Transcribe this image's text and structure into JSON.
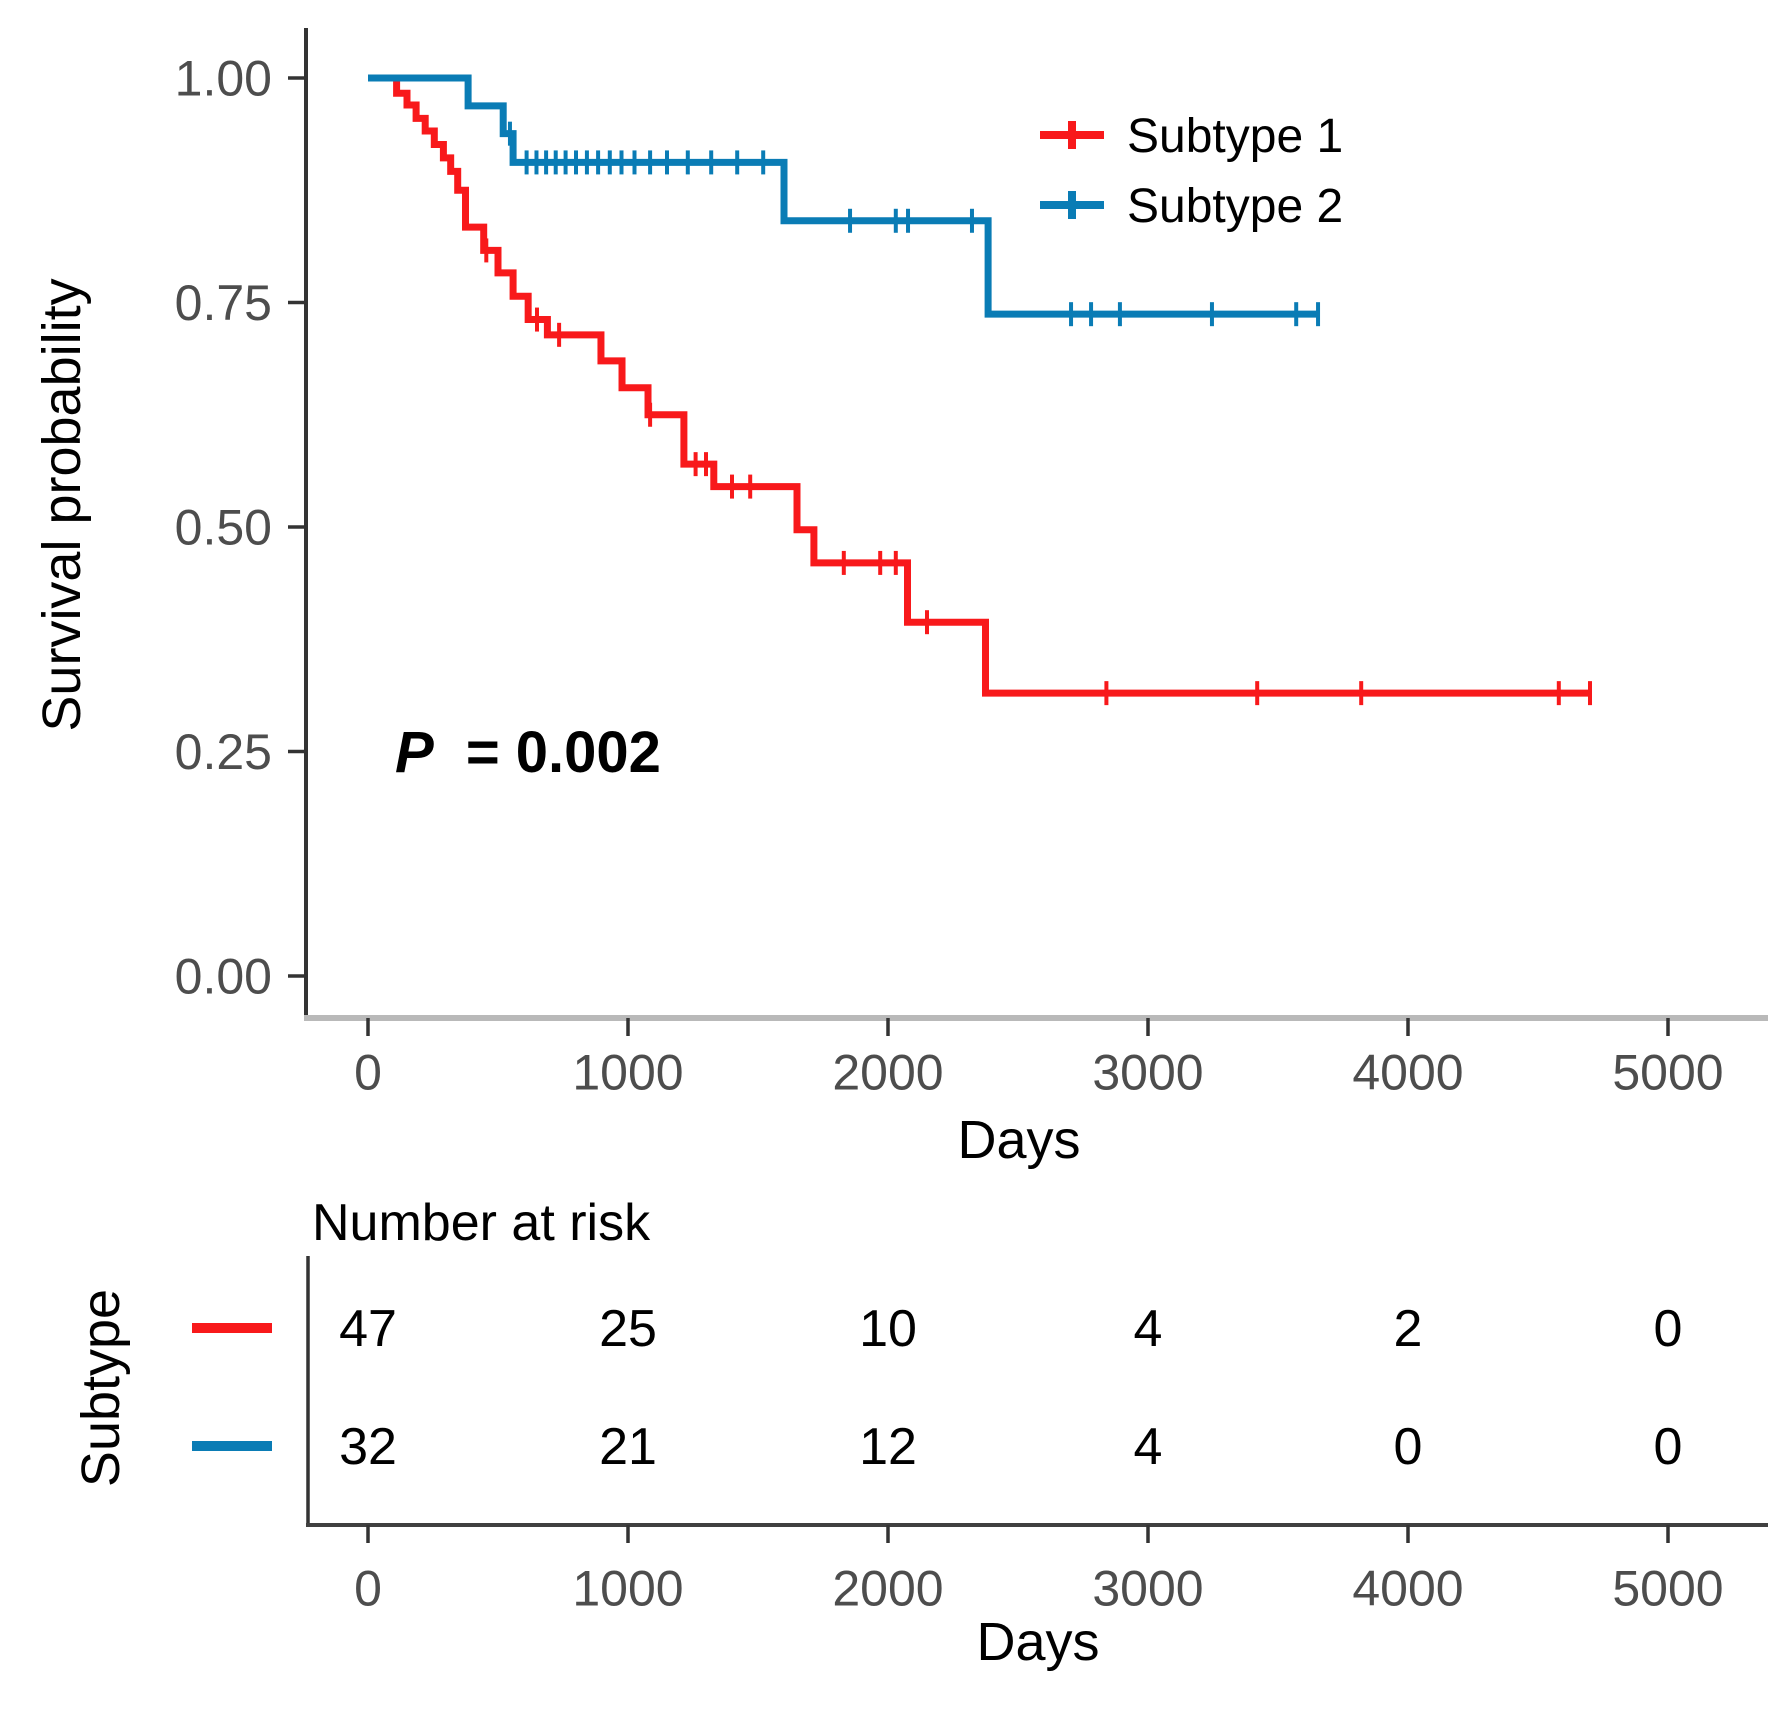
{
  "chart_data": {
    "type": "line",
    "subtype": "kaplan-meier-step",
    "title": "",
    "xlabel": "Days",
    "ylabel": "Survival probability",
    "xlim": [
      0,
      5385
    ],
    "ylim": [
      0,
      1
    ],
    "grid": false,
    "legend_position": "top-right-inside",
    "xticks": {
      "values": [
        0,
        1000,
        2000,
        3000,
        4000,
        5000
      ],
      "labels": [
        "0",
        "1000",
        "2000",
        "3000",
        "4000",
        "5000"
      ]
    },
    "yticks": {
      "values": [
        1.0,
        0.75,
        0.5,
        0.25,
        0.0
      ],
      "labels": [
        "1.00",
        "0.75",
        "0.50",
        "0.25",
        "0.00"
      ]
    },
    "p_value": {
      "symbol": "P",
      "rest": "= 0.002"
    },
    "colors": {
      "axis_text": "#4d4d4d",
      "axis_line": "#333333",
      "panel_baseline": "#b9b9b9"
    },
    "series": [
      {
        "name": "Subtype 1",
        "color": "#F8191B",
        "n_at_start": 47,
        "steps": [
          [
            0,
            1.0
          ],
          [
            110,
            0.983
          ],
          [
            150,
            0.97
          ],
          [
            185,
            0.955
          ],
          [
            220,
            0.941
          ],
          [
            255,
            0.926
          ],
          [
            290,
            0.911
          ],
          [
            318,
            0.896
          ],
          [
            345,
            0.875
          ],
          [
            375,
            0.834
          ],
          [
            445,
            0.808
          ],
          [
            500,
            0.783
          ],
          [
            558,
            0.757
          ],
          [
            616,
            0.731
          ],
          [
            690,
            0.714
          ],
          [
            896,
            0.685
          ],
          [
            977,
            0.655
          ],
          [
            1077,
            0.625
          ],
          [
            1215,
            0.57
          ],
          [
            1330,
            0.545
          ],
          [
            1650,
            0.497
          ],
          [
            1715,
            0.46
          ],
          [
            2075,
            0.394
          ],
          [
            2375,
            0.315
          ],
          [
            4700,
            0.315
          ]
        ],
        "censor_days": [
          455,
          650,
          735,
          1085,
          1260,
          1300,
          1400,
          1470,
          1830,
          1970,
          2030,
          2150,
          2840,
          3420,
          3820,
          4580,
          4700
        ]
      },
      {
        "name": "Subtype 2",
        "color": "#0A7CB5",
        "n_at_start": 32,
        "steps": [
          [
            0,
            1.0
          ],
          [
            385,
            0.969
          ],
          [
            520,
            0.938
          ],
          [
            558,
            0.906
          ],
          [
            1600,
            0.841
          ],
          [
            2385,
            0.737
          ],
          [
            3654,
            0.737
          ]
        ],
        "censor_days": [
          546,
          610,
          648,
          685,
          722,
          760,
          800,
          842,
          885,
          930,
          975,
          1025,
          1085,
          1150,
          1230,
          1320,
          1420,
          1520,
          1854,
          2030,
          2077,
          2323,
          2704,
          2781,
          2892,
          3246,
          3570,
          3654
        ]
      }
    ],
    "risk_table": {
      "title": "Number at risk",
      "row_axis_label": "Subtype",
      "xlabel": "Days",
      "time_points": [
        0,
        1000,
        2000,
        3000,
        4000,
        5000
      ],
      "rows": [
        {
          "name": "Subtype 1",
          "color": "#F8191B",
          "values": [
            "47",
            "25",
            "10",
            "4",
            "2",
            "0"
          ]
        },
        {
          "name": "Subtype 2",
          "color": "#0A7CB5",
          "values": [
            "32",
            "21",
            "12",
            "4",
            "0",
            "0"
          ]
        }
      ]
    }
  }
}
